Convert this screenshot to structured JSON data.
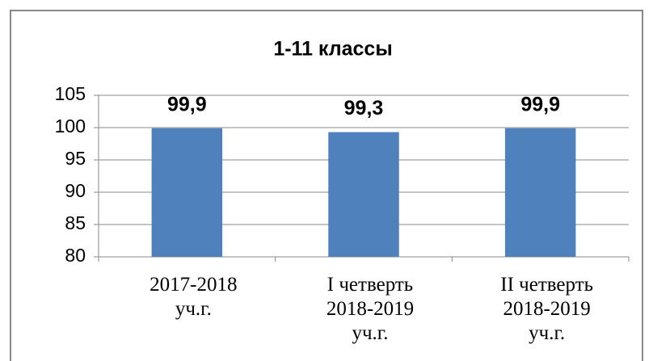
{
  "chart_data": {
    "type": "bar",
    "title": "1-11 классы",
    "categories": [
      "2017-2018\nуч.г.",
      "I четверть\n2018-2019\nуч.г.",
      "II четверть\n2018-2019\nуч.г."
    ],
    "values": [
      99.9,
      99.3,
      99.9
    ],
    "value_labels": [
      "99,9",
      "99,3",
      "99,9"
    ],
    "color": "#4f81bd",
    "ylim": [
      80,
      105
    ],
    "yticks": [
      80,
      85,
      90,
      95,
      100,
      105
    ],
    "grid": true
  }
}
